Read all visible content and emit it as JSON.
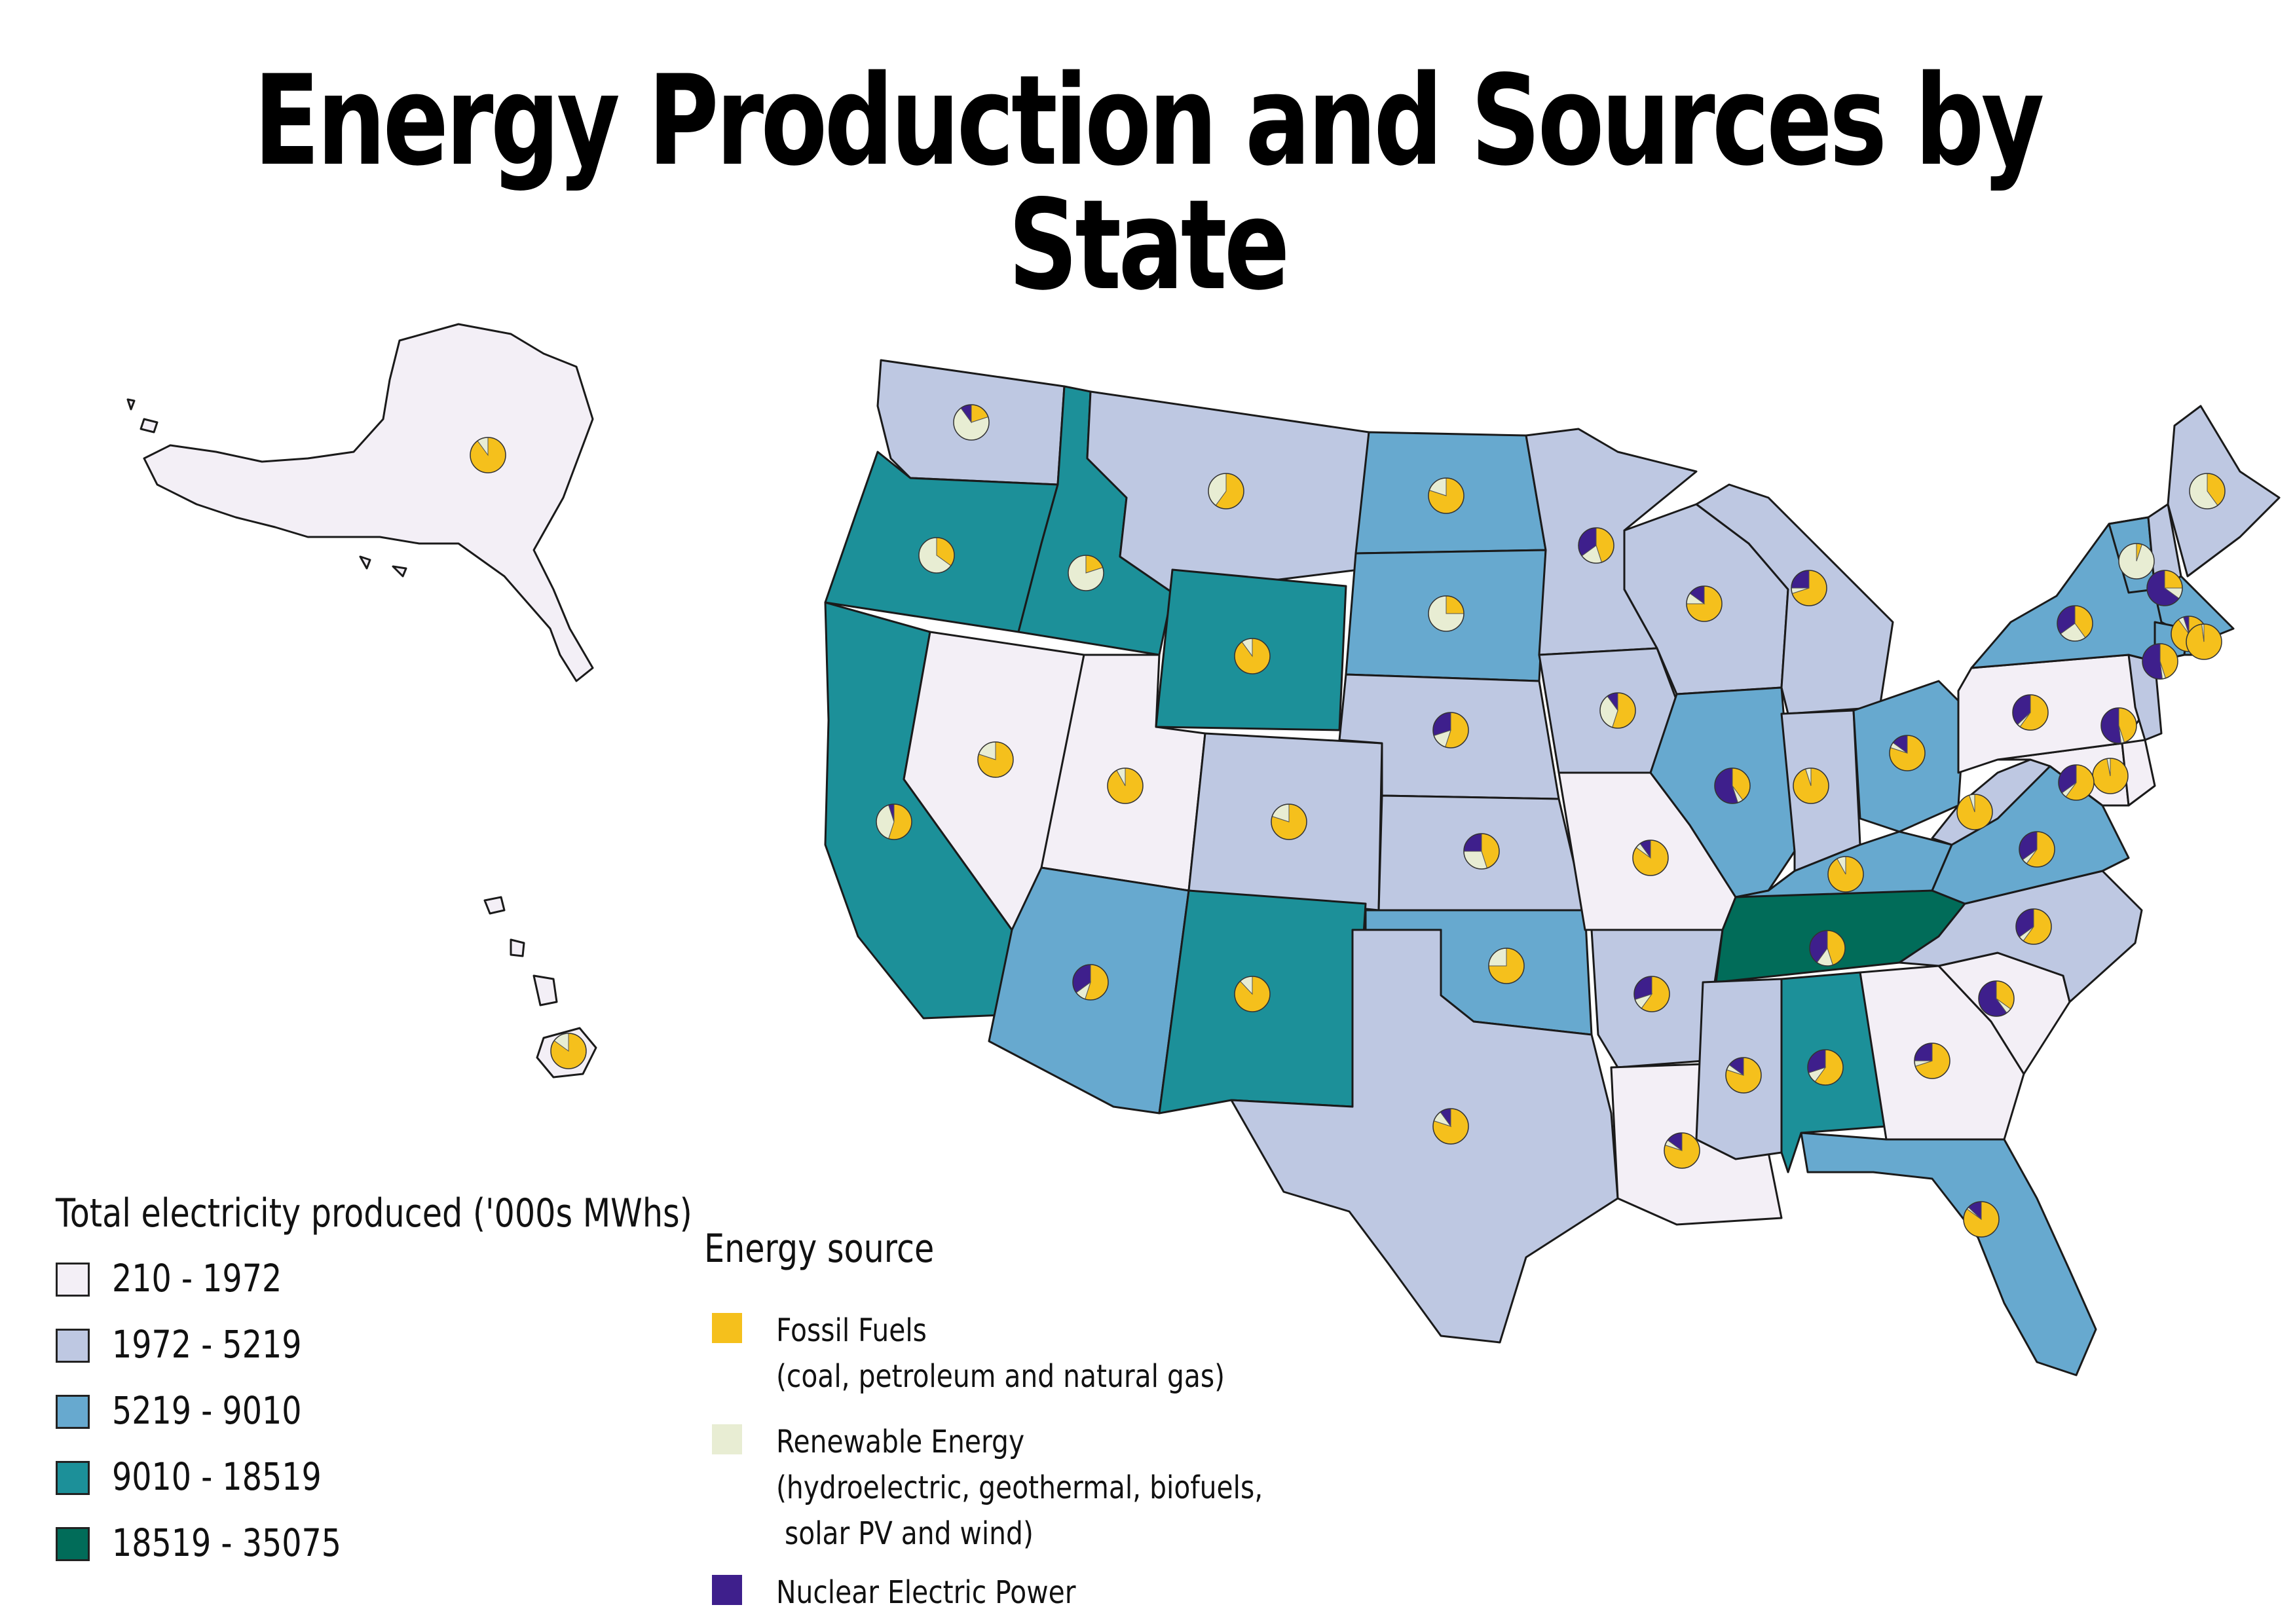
{
  "title": "Energy Production and Sources by State",
  "colors": {
    "fossil": "#F5C01C",
    "renewable": "#E8EDD3",
    "nuclear": "#3E1F8C",
    "bin1": "#F3EFF6",
    "bin2": "#BEC8E2",
    "bin3": "#67A9CF",
    "bin4": "#1C9099",
    "bin5": "#016C59"
  },
  "legend_total": {
    "title": "Total electricity produced ('000s MWhs)",
    "bins": [
      {
        "label": "210 - 1972",
        "color": "#F3EFF6"
      },
      {
        "label": "1972 - 5219",
        "color": "#BEC8E2"
      },
      {
        "label": "5219 - 9010",
        "color": "#67A9CF"
      },
      {
        "label": "9010 - 18519",
        "color": "#1C9099"
      },
      {
        "label": "18519 - 35075",
        "color": "#016C59"
      }
    ]
  },
  "legend_source": {
    "title": "Energy source",
    "items": [
      {
        "lines": [
          "Fossil Fuels",
          "(coal, petroleum and natural gas)"
        ],
        "color": "#F5C01C"
      },
      {
        "lines": [
          "Renewable Energy",
          "(hydroelectric, geothermal, biofuels,",
          " solar PV and wind)"
        ],
        "color": "#E8EDD3"
      },
      {
        "lines": [
          "Nuclear Electric Power"
        ],
        "color": "#3E1F8C"
      }
    ]
  },
  "states": [
    {
      "abbr": "AK",
      "bin": 1,
      "mix": [
        0.9,
        0.1,
        0.0
      ]
    },
    {
      "abbr": "HI",
      "bin": 1,
      "mix": [
        0.85,
        0.15,
        0.0
      ]
    },
    {
      "abbr": "WA",
      "bin": 2,
      "mix": [
        0.2,
        0.7,
        0.1
      ]
    },
    {
      "abbr": "OR",
      "bin": 4,
      "mix": [
        0.35,
        0.65,
        0.0
      ]
    },
    {
      "abbr": "CA",
      "bin": 4,
      "mix": [
        0.55,
        0.4,
        0.05
      ]
    },
    {
      "abbr": "ID",
      "bin": 4,
      "mix": [
        0.2,
        0.8,
        0.0
      ]
    },
    {
      "abbr": "NV",
      "bin": 1,
      "mix": [
        0.8,
        0.2,
        0.0
      ]
    },
    {
      "abbr": "UT",
      "bin": 1,
      "mix": [
        0.92,
        0.08,
        0.0
      ]
    },
    {
      "abbr": "AZ",
      "bin": 3,
      "mix": [
        0.55,
        0.1,
        0.35
      ]
    },
    {
      "abbr": "MT",
      "bin": 2,
      "mix": [
        0.6,
        0.4,
        0.0
      ]
    },
    {
      "abbr": "WY",
      "bin": 4,
      "mix": [
        0.9,
        0.1,
        0.0
      ]
    },
    {
      "abbr": "CO",
      "bin": 2,
      "mix": [
        0.8,
        0.2,
        0.0
      ]
    },
    {
      "abbr": "NM",
      "bin": 4,
      "mix": [
        0.88,
        0.12,
        0.0
      ]
    },
    {
      "abbr": "ND",
      "bin": 3,
      "mix": [
        0.8,
        0.2,
        0.0
      ]
    },
    {
      "abbr": "SD",
      "bin": 3,
      "mix": [
        0.25,
        0.75,
        0.0
      ]
    },
    {
      "abbr": "NE",
      "bin": 2,
      "mix": [
        0.55,
        0.15,
        0.3
      ]
    },
    {
      "abbr": "KS",
      "bin": 2,
      "mix": [
        0.45,
        0.3,
        0.25
      ]
    },
    {
      "abbr": "OK",
      "bin": 3,
      "mix": [
        0.75,
        0.25,
        0.0
      ]
    },
    {
      "abbr": "TX",
      "bin": 2,
      "mix": [
        0.8,
        0.1,
        0.1
      ]
    },
    {
      "abbr": "MN",
      "bin": 2,
      "mix": [
        0.45,
        0.2,
        0.35
      ]
    },
    {
      "abbr": "IA",
      "bin": 2,
      "mix": [
        0.55,
        0.35,
        0.1
      ]
    },
    {
      "abbr": "MO",
      "bin": 1,
      "mix": [
        0.85,
        0.05,
        0.1
      ]
    },
    {
      "abbr": "AR",
      "bin": 2,
      "mix": [
        0.6,
        0.1,
        0.3
      ]
    },
    {
      "abbr": "LA",
      "bin": 1,
      "mix": [
        0.8,
        0.05,
        0.15
      ]
    },
    {
      "abbr": "WI",
      "bin": 2,
      "mix": [
        0.75,
        0.1,
        0.15
      ]
    },
    {
      "abbr": "IL",
      "bin": 3,
      "mix": [
        0.4,
        0.05,
        0.55
      ]
    },
    {
      "abbr": "MI",
      "bin": 2,
      "mix": [
        0.7,
        0.05,
        0.25
      ]
    },
    {
      "abbr": "IN",
      "bin": 2,
      "mix": [
        0.95,
        0.05,
        0.0
      ]
    },
    {
      "abbr": "OH",
      "bin": 3,
      "mix": [
        0.8,
        0.05,
        0.15
      ]
    },
    {
      "abbr": "KY",
      "bin": 3,
      "mix": [
        0.92,
        0.08,
        0.0
      ]
    },
    {
      "abbr": "TN",
      "bin": 5,
      "mix": [
        0.45,
        0.15,
        0.4
      ]
    },
    {
      "abbr": "MS",
      "bin": 2,
      "mix": [
        0.8,
        0.05,
        0.15
      ]
    },
    {
      "abbr": "AL",
      "bin": 4,
      "mix": [
        0.6,
        0.1,
        0.3
      ]
    },
    {
      "abbr": "GA",
      "bin": 1,
      "mix": [
        0.7,
        0.05,
        0.25
      ]
    },
    {
      "abbr": "FL",
      "bin": 3,
      "mix": [
        0.85,
        0.02,
        0.13
      ]
    },
    {
      "abbr": "SC",
      "bin": 1,
      "mix": [
        0.35,
        0.05,
        0.6
      ]
    },
    {
      "abbr": "NC",
      "bin": 2,
      "mix": [
        0.6,
        0.05,
        0.35
      ]
    },
    {
      "abbr": "VA",
      "bin": 3,
      "mix": [
        0.6,
        0.05,
        0.35
      ]
    },
    {
      "abbr": "WV",
      "bin": 2,
      "mix": [
        0.95,
        0.05,
        0.0
      ]
    },
    {
      "abbr": "PA",
      "bin": 1,
      "mix": [
        0.6,
        0.03,
        0.37
      ]
    },
    {
      "abbr": "NY",
      "bin": 3,
      "mix": [
        0.4,
        0.25,
        0.35
      ]
    },
    {
      "abbr": "VT",
      "bin": 3,
      "mix": [
        0.05,
        0.95,
        0.0
      ]
    },
    {
      "abbr": "NH",
      "bin": 2,
      "mix": [
        0.25,
        0.1,
        0.65
      ]
    },
    {
      "abbr": "ME",
      "bin": 2,
      "mix": [
        0.4,
        0.6,
        0.0
      ]
    },
    {
      "abbr": "MA",
      "bin": 3,
      "mix": [
        0.9,
        0.05,
        0.05
      ]
    },
    {
      "abbr": "RI",
      "bin": 3,
      "mix": [
        0.98,
        0.02,
        0.0
      ]
    },
    {
      "abbr": "CT",
      "bin": 3,
      "mix": [
        0.45,
        0.03,
        0.52
      ]
    },
    {
      "abbr": "NJ",
      "bin": 2,
      "mix": [
        0.45,
        0.03,
        0.52
      ]
    },
    {
      "abbr": "DE",
      "bin": 1,
      "mix": [
        0.97,
        0.03,
        0.0
      ]
    },
    {
      "abbr": "MD",
      "bin": 1,
      "mix": [
        0.6,
        0.05,
        0.35
      ]
    }
  ]
}
